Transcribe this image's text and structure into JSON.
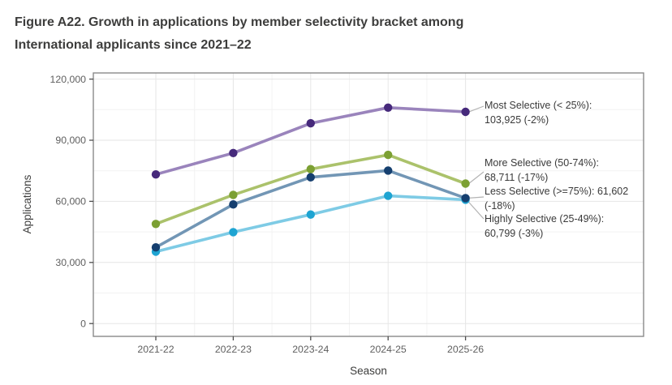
{
  "title": {
    "line1": "Figure A22. Growth in applications by member selectivity bracket among",
    "line2": "International applicants since 2021–22"
  },
  "chart_data": {
    "type": "line",
    "x": [
      "2021-22",
      "2022-23",
      "2023-24",
      "2024-25",
      "2025-26"
    ],
    "xlabel": "Season",
    "ylabel": "Applications",
    "ylim": [
      0,
      120000
    ],
    "yticks": [
      0,
      30000,
      60000,
      90000,
      120000
    ],
    "ytick_labels": [
      "0",
      "30,000",
      "60,000",
      "90,000",
      "120,000"
    ],
    "yticks_minor": [
      15000,
      45000,
      75000,
      105000
    ],
    "grid": "major light gray horizontal and vertical, minor fainter",
    "legend_position": "right-side direct annotations",
    "series": [
      {
        "key": "most-selective",
        "name": "Most Selective (< 25%)",
        "values": [
          73200,
          83700,
          98300,
          106000,
          103925
        ],
        "latest_value": "103,925",
        "latest_change": "-2%",
        "line_color": "#9a84bc",
        "point_color": "#46297b",
        "annotation_line1": "Most Selective (< 25%):",
        "annotation_line2": "103,925 (-2%)"
      },
      {
        "key": "more-selective",
        "name": "More Selective (50-74%)",
        "values": [
          48900,
          63200,
          75800,
          82800,
          68711
        ],
        "latest_value": "68,711",
        "latest_change": "-17%",
        "line_color": "#abc26b",
        "point_color": "#7ca033",
        "annotation_line1": "More Selective (50-74%):",
        "annotation_line2": "68,711 (-17%)"
      },
      {
        "key": "less-selective",
        "name": "Less Selective (>=75%)",
        "values": [
          37400,
          58500,
          71800,
          75100,
          61602
        ],
        "latest_value": "61,602",
        "latest_change": "-18%",
        "line_color": "#7296b5",
        "point_color": "#153f6f",
        "annotation_line1": "Less Selective (>=75%): 61,602",
        "annotation_line2": "(-18%)"
      },
      {
        "key": "highly-selective",
        "name": "Highly Selective (25-49%)",
        "values": [
          35300,
          44900,
          53500,
          62700,
          60799
        ],
        "latest_value": "60,799",
        "latest_change": "-3%",
        "line_color": "#7ecbe5",
        "point_color": "#1ea4d2",
        "annotation_line1": "Highly Selective (25-49%):",
        "annotation_line2": "60,799 (-3%)"
      }
    ],
    "colors": {
      "panel_border": "#8a8a8a",
      "grid_major": "#e6e6e6",
      "grid_minor": "#f2f2f2",
      "tick_mark": "#4d4d4d",
      "tick_label": "#5f5f5f",
      "axis_title": "#3d3d3c",
      "leader_line": "#b3b3b3"
    }
  }
}
